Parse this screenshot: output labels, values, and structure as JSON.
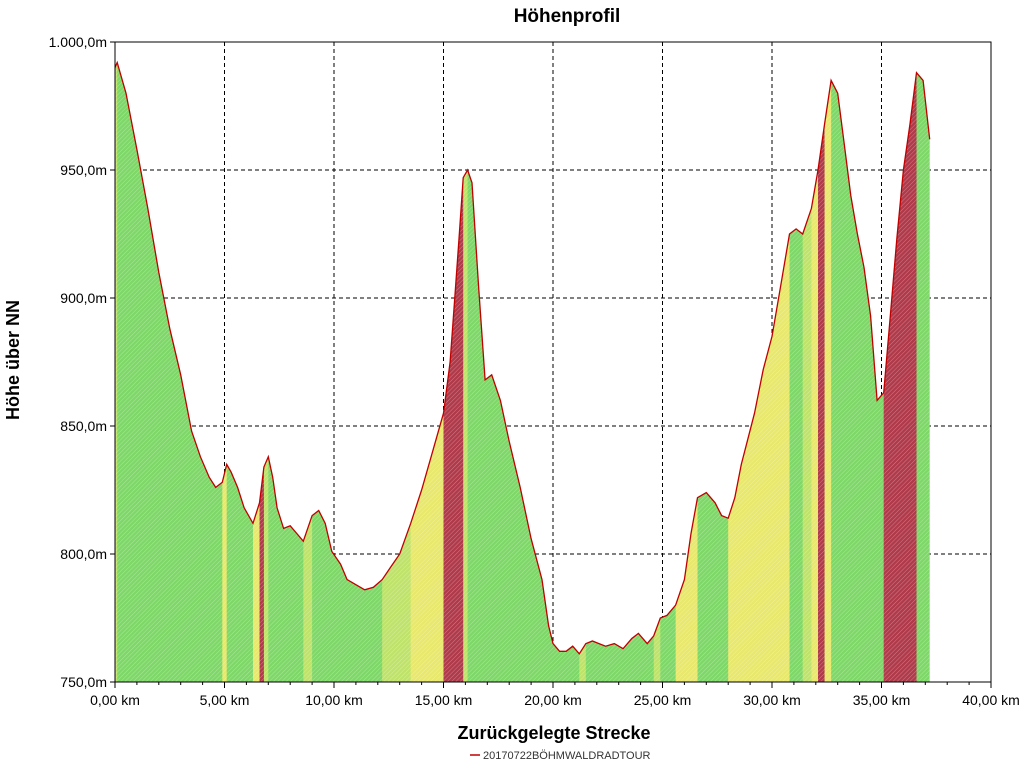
{
  "chart_data": {
    "type": "area",
    "title": "Höhenprofil",
    "xlabel": "Zurückgelegte Strecke",
    "ylabel": "Höhe über NN",
    "xlim": [
      0,
      40
    ],
    "ylim": [
      750,
      1000
    ],
    "x_ticks": [
      0,
      5,
      10,
      15,
      20,
      25,
      30,
      35,
      40
    ],
    "x_tick_labels": [
      "0,00 km",
      "5,00 km",
      "10,00 km",
      "15,00 km",
      "20,00 km",
      "25,00 km",
      "30,00 km",
      "35,00 km",
      "40,00 km"
    ],
    "y_ticks": [
      750,
      800,
      850,
      900,
      950,
      1000
    ],
    "y_tick_labels": [
      "750,0m",
      "800,0m",
      "850,0m",
      "900,0m",
      "950,0m",
      "1.000,0m"
    ],
    "grid": true,
    "legend_position": "bottom-center",
    "series": [
      {
        "name": "20170722BÖHMWALDRADTOUR",
        "line_color": "#c00000",
        "x": [
          0,
          0.1,
          0.5,
          1.0,
          1.5,
          2.0,
          2.5,
          3.0,
          3.5,
          3.9,
          4.3,
          4.6,
          4.9,
          5.1,
          5.3,
          5.6,
          5.9,
          6.3,
          6.6,
          6.8,
          7.0,
          7.2,
          7.4,
          7.7,
          8.0,
          8.3,
          8.6,
          9.0,
          9.3,
          9.6,
          9.9,
          10.3,
          10.6,
          11.0,
          11.4,
          11.8,
          12.2,
          12.6,
          13.0,
          13.5,
          14.0,
          14.5,
          15.0,
          15.3,
          15.5,
          15.7,
          15.9,
          16.1,
          16.3,
          16.6,
          16.9,
          17.2,
          17.6,
          18.0,
          18.5,
          19.0,
          19.5,
          19.8,
          20.0,
          20.3,
          20.6,
          20.9,
          21.2,
          21.5,
          21.8,
          22.1,
          22.4,
          22.8,
          23.2,
          23.6,
          23.9,
          24.3,
          24.6,
          24.9,
          25.2,
          25.6,
          26.0,
          26.3,
          26.6,
          27.0,
          27.4,
          27.7,
          28.0,
          28.3,
          28.6,
          28.9,
          29.2,
          29.6,
          30.0,
          30.4,
          30.8,
          31.1,
          31.4,
          31.8,
          32.1,
          32.4,
          32.7,
          33.0,
          33.3,
          33.6,
          33.9,
          34.2,
          34.5,
          34.8,
          35.1,
          35.4,
          35.7,
          36.0,
          36.3,
          36.6,
          36.9,
          37.2
        ],
        "y": [
          990,
          992,
          980,
          958,
          935,
          910,
          888,
          870,
          848,
          838,
          830,
          826,
          828,
          835,
          832,
          826,
          818,
          812,
          820,
          834,
          838,
          830,
          818,
          810,
          811,
          808,
          805,
          815,
          817,
          812,
          801,
          796,
          790,
          788,
          786,
          787,
          790,
          795,
          800,
          812,
          825,
          840,
          855,
          875,
          898,
          922,
          947,
          950,
          945,
          905,
          868,
          870,
          860,
          844,
          826,
          806,
          790,
          772,
          765,
          762,
          762,
          764,
          761,
          765,
          766,
          765,
          764,
          765,
          763,
          767,
          769,
          765,
          768,
          775,
          776,
          780,
          790,
          808,
          822,
          824,
          820,
          815,
          814,
          822,
          835,
          845,
          855,
          872,
          885,
          905,
          925,
          927,
          925,
          935,
          950,
          968,
          985,
          980,
          960,
          940,
          925,
          912,
          893,
          860,
          863,
          893,
          923,
          950,
          968,
          988,
          985,
          962
        ]
      }
    ]
  }
}
